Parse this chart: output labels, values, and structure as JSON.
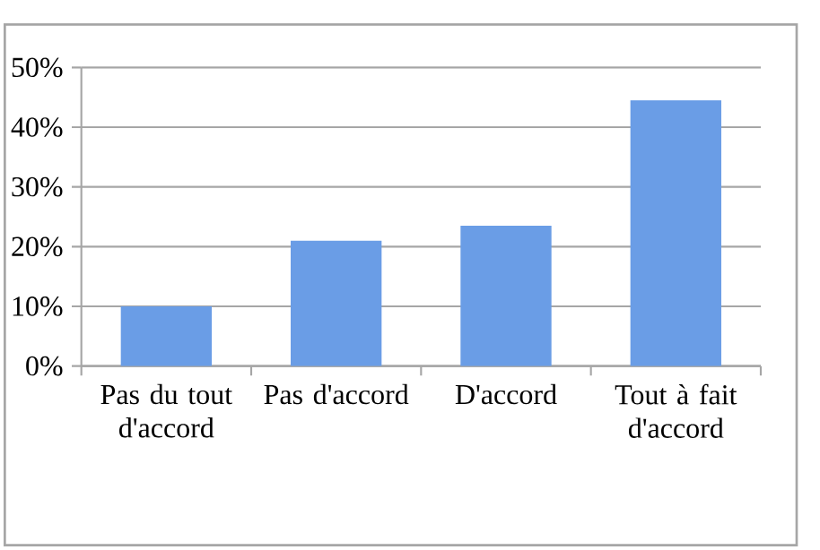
{
  "chart_data": {
    "type": "bar",
    "categories": [
      "Pas du tout d'accord",
      "Pas d'accord",
      "D'accord",
      "Tout à fait d'accord"
    ],
    "values": [
      10,
      21,
      23.5,
      44.5
    ],
    "color": "#6a9de6",
    "ylim": [
      0,
      50
    ],
    "yticks": [
      {
        "value": 0,
        "label": "0%"
      },
      {
        "value": 10,
        "label": "10%"
      },
      {
        "value": 20,
        "label": "20%"
      },
      {
        "value": 30,
        "label": "30%"
      },
      {
        "value": 40,
        "label": "40%"
      },
      {
        "value": 50,
        "label": "50%"
      }
    ],
    "grid": "y"
  }
}
